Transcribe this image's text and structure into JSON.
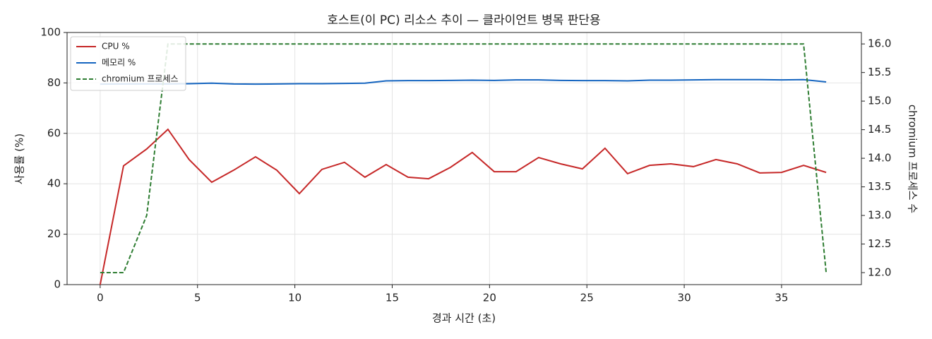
{
  "chart_data": {
    "type": "line",
    "title": "호스트(이 PC) 리소스 추이 — 클라이언트 병목 판단용",
    "x_label": "경과 시간 (초)",
    "y_label": "사용률 (%)",
    "y2_label": "chromium 프로세스 수",
    "x": [
      0,
      1.2,
      2.39,
      3.48,
      4.57,
      5.73,
      6.86,
      7.98,
      9.07,
      10.23,
      11.39,
      12.55,
      13.6,
      14.69,
      15.81,
      16.87,
      17.99,
      19.11,
      20.24,
      21.36,
      22.52,
      23.65,
      24.77,
      25.93,
      27.09,
      28.22,
      29.31,
      30.47,
      31.63,
      32.72,
      33.88,
      35.0,
      36.13,
      37.29
    ],
    "series": [
      {
        "name": "CPU %",
        "color": "#c62828",
        "values": [
          0,
          47.1,
          53.8,
          61.6,
          49.6,
          40.6,
          45.4,
          50.7,
          45.4,
          36.1,
          45.7,
          48.5,
          42.6,
          47.6,
          42.6,
          42.0,
          46.5,
          52.4,
          44.8,
          44.8,
          50.4,
          47.9,
          45.9,
          54.1,
          44.0,
          47.3,
          47.9,
          46.8,
          49.6,
          47.9,
          44.3,
          44.5,
          47.3,
          44.5
        ]
      },
      {
        "name": "메모리 %",
        "color": "#1565c0",
        "values": [
          79.5,
          79.6,
          79.6,
          79.6,
          79.7,
          79.9,
          79.6,
          79.5,
          79.6,
          79.7,
          79.7,
          79.8,
          79.9,
          80.8,
          80.9,
          80.9,
          81.0,
          81.1,
          81.0,
          81.2,
          81.2,
          81.0,
          80.9,
          80.9,
          80.8,
          81.1,
          81.1,
          81.2,
          81.3,
          81.3,
          81.3,
          81.2,
          81.3,
          80.4
        ]
      },
      {
        "name": "chromium 프로세스",
        "color": "#2e7d32",
        "dashed": true,
        "axis": "y2",
        "values": [
          12,
          12,
          13,
          16,
          16,
          16,
          16,
          16,
          16,
          16,
          16,
          16,
          16,
          16,
          16,
          16,
          16,
          16,
          16,
          16,
          16,
          16,
          16,
          16,
          16,
          16,
          16,
          16,
          16,
          16,
          16,
          16,
          16,
          12
        ]
      }
    ],
    "xlim": [
      -1.7,
      39.1
    ],
    "xticks": [
      0,
      5,
      10,
      15,
      20,
      25,
      30,
      35
    ],
    "ylim": [
      0,
      100
    ],
    "yticks": [
      0,
      20,
      40,
      60,
      80,
      100
    ],
    "y2lim": [
      11.79,
      16.2
    ],
    "y2ticks": [
      {
        "value": 12,
        "label": "12.0"
      },
      12.5,
      {
        "value": 13,
        "label": "13.0"
      },
      13.5,
      {
        "value": 14,
        "label": "14.0"
      },
      14.5,
      {
        "value": 15,
        "label": "15.0"
      },
      15.5,
      {
        "value": 16,
        "label": "16.0"
      }
    ],
    "grid": true,
    "legend": "upper-left"
  }
}
